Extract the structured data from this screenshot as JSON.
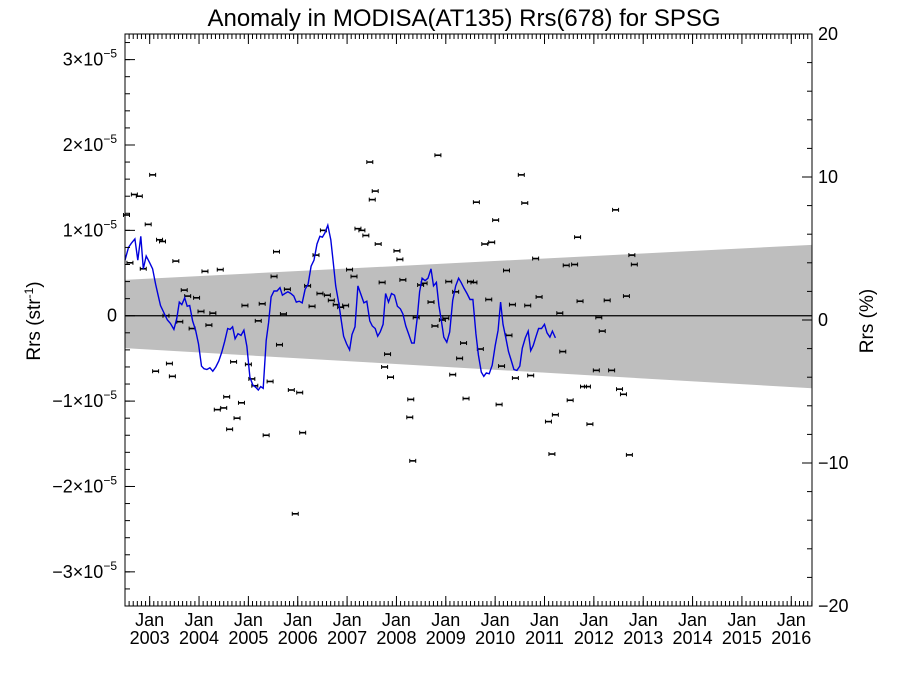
{
  "chart_data": {
    "type": "scatter",
    "title": "Anomaly in MODISA(AT135) Rrs(678) for SPSG",
    "ylabel_left": "Rrs (str",
    "ylabel_left_sup": "-1",
    "ylabel_left_close": ")",
    "ylabel_right": "Rrs (%)",
    "ylim_left": [
      -3.4e-05,
      3.3e-05
    ],
    "ylim_right": [
      -20,
      20
    ],
    "xlim": [
      2002.5,
      2016.42
    ],
    "left_ticks": [
      {
        "value": 3e-05,
        "mant": "3×10",
        "exp": "−5"
      },
      {
        "value": 2e-05,
        "mant": "2×10",
        "exp": "−5"
      },
      {
        "value": 1e-05,
        "mant": "1×10",
        "exp": "−5"
      },
      {
        "value": 0,
        "mant": "0",
        "exp": ""
      },
      {
        "value": -1e-05,
        "mant": "−1×10",
        "exp": "−5"
      },
      {
        "value": -2e-05,
        "mant": "−2×10",
        "exp": "−5"
      },
      {
        "value": -3e-05,
        "mant": "−3×10",
        "exp": "−5"
      }
    ],
    "right_ticks": [
      {
        "value": 20,
        "label": "20"
      },
      {
        "value": 10,
        "label": "10"
      },
      {
        "value": 0,
        "label": "0"
      },
      {
        "value": -10,
        "label": "−10"
      },
      {
        "value": -20,
        "label": "−20"
      }
    ],
    "x_ticks": [
      {
        "value": 2003,
        "month": "Jan",
        "year": "2003"
      },
      {
        "value": 2004,
        "month": "Jan",
        "year": "2004"
      },
      {
        "value": 2005,
        "month": "Jan",
        "year": "2005"
      },
      {
        "value": 2006,
        "month": "Jan",
        "year": "2006"
      },
      {
        "value": 2007,
        "month": "Jan",
        "year": "2007"
      },
      {
        "value": 2008,
        "month": "Jan",
        "year": "2008"
      },
      {
        "value": 2009,
        "month": "Jan",
        "year": "2009"
      },
      {
        "value": 2010,
        "month": "Jan",
        "year": "2010"
      },
      {
        "value": 2011,
        "month": "Jan",
        "year": "2011"
      },
      {
        "value": 2012,
        "month": "Jan",
        "year": "2012"
      },
      {
        "value": 2013,
        "month": "Jan",
        "year": "2013"
      },
      {
        "value": 2014,
        "month": "Jan",
        "year": "2014"
      },
      {
        "value": 2015,
        "month": "Jan",
        "year": "2015"
      },
      {
        "value": 2016,
        "month": "Jan",
        "year": "2016"
      }
    ],
    "band": {
      "upper": [
        [
          2002.5,
          4.2e-06
        ],
        [
          2016.42,
          8.3e-06
        ]
      ],
      "lower": [
        [
          2002.5,
          -3.8e-06
        ],
        [
          2016.42,
          -8.5e-06
        ]
      ],
      "color": "#bebebe"
    },
    "colors": {
      "points": "#000000",
      "smooth": "#0000dd",
      "zero_line": "#000000"
    },
    "points": [
      [
        2002.53,
        1.18e-05
      ],
      [
        2002.6,
        6.2e-06
      ],
      [
        2002.69,
        1.42e-05
      ],
      [
        2002.79,
        1.4e-05
      ],
      [
        2002.87,
        5.5e-06
      ],
      [
        2002.97,
        1.07e-05
      ],
      [
        2003.06,
        1.65e-05
      ],
      [
        2003.12,
        -6.5e-06
      ],
      [
        2003.2,
        8.9e-06
      ],
      [
        2003.26,
        8.7e-06
      ],
      [
        2003.33,
        0
      ],
      [
        2003.4,
        -5.6e-06
      ],
      [
        2003.46,
        -7.1e-06
      ],
      [
        2003.53,
        6.4e-06
      ],
      [
        2003.61,
        -7e-07
      ],
      [
        2003.7,
        3e-06
      ],
      [
        2003.77,
        2.3e-06
      ],
      [
        2003.86,
        -1.5e-06
      ],
      [
        2003.95,
        2.1e-06
      ],
      [
        2004.04,
        5e-07
      ],
      [
        2004.12,
        5.2e-06
      ],
      [
        2004.2,
        -1.1e-06
      ],
      [
        2004.28,
        3e-07
      ],
      [
        2004.37,
        -1.1e-05
      ],
      [
        2004.43,
        5.4e-06
      ],
      [
        2004.5,
        -1.08e-05
      ],
      [
        2004.56,
        -9.5e-06
      ],
      [
        2004.62,
        -1.33e-05
      ],
      [
        2004.7,
        -5.4e-06
      ],
      [
        2004.77,
        -1.2e-05
      ],
      [
        2004.86,
        -1.02e-05
      ],
      [
        2004.93,
        1.2e-06
      ],
      [
        2005.0,
        -5.7e-06
      ],
      [
        2005.07,
        -7.4e-06
      ],
      [
        2005.13,
        -8.2e-06
      ],
      [
        2005.2,
        -6e-07
      ],
      [
        2005.28,
        1.4e-06
      ],
      [
        2005.36,
        -1.4e-05
      ],
      [
        2005.44,
        -7.7e-06
      ],
      [
        2005.52,
        4.6e-06
      ],
      [
        2005.57,
        7.5e-06
      ],
      [
        2005.63,
        -3.4e-06
      ],
      [
        2005.71,
        2e-07
      ],
      [
        2005.79,
        3.1e-06
      ],
      [
        2005.87,
        -8.7e-06
      ],
      [
        2005.95,
        -2.32e-05
      ],
      [
        2006.04,
        -9e-06
      ],
      [
        2006.1,
        -1.37e-05
      ],
      [
        2006.2,
        3.5e-06
      ],
      [
        2006.29,
        1.1e-06
      ],
      [
        2006.37,
        7.1e-06
      ],
      [
        2006.45,
        2.6e-06
      ],
      [
        2006.52,
        1e-05
      ],
      [
        2006.6,
        2.4e-06
      ],
      [
        2006.68,
        1.8e-06
      ],
      [
        2006.78,
        1.3e-06
      ],
      [
        2006.87,
        1e-06
      ],
      [
        2006.97,
        1.2e-06
      ],
      [
        2007.05,
        5.4e-06
      ],
      [
        2007.14,
        4.6e-06
      ],
      [
        2007.22,
        1.02e-05
      ],
      [
        2007.3,
        1e-05
      ],
      [
        2007.38,
        9.4e-06
      ],
      [
        2007.46,
        1.8e-05
      ],
      [
        2007.51,
        1.36e-05
      ],
      [
        2007.57,
        1.46e-05
      ],
      [
        2007.63,
        8.4e-06
      ],
      [
        2007.71,
        3.9e-06
      ],
      [
        2007.76,
        -6e-06
      ],
      [
        2007.82,
        -4.5e-06
      ],
      [
        2007.88,
        -7.2e-06
      ],
      [
        2008.01,
        7.6e-06
      ],
      [
        2008.07,
        6.6e-06
      ],
      [
        2008.13,
        4.2e-06
      ],
      [
        2008.29,
        -9.8e-06
      ],
      [
        2008.27,
        -1.19e-05
      ],
      [
        2008.33,
        -1.7e-05
      ],
      [
        2008.4,
        -2e-07
      ],
      [
        2008.49,
        3.6e-06
      ],
      [
        2008.56,
        3.8e-06
      ],
      [
        2008.7,
        1.6e-06
      ],
      [
        2008.78,
        -1.2e-06
      ],
      [
        2008.84,
        1.88e-05
      ],
      [
        2008.93,
        -5e-07
      ],
      [
        2009.0,
        -3e-07
      ],
      [
        2009.06,
        4e-06
      ],
      [
        2009.14,
        -6.9e-06
      ],
      [
        2009.2,
        2.8e-06
      ],
      [
        2009.28,
        -5e-06
      ],
      [
        2009.36,
        -3.2e-06
      ],
      [
        2009.41,
        -9.7e-06
      ],
      [
        2009.5,
        4e-06
      ],
      [
        2009.57,
        3.9e-06
      ],
      [
        2009.62,
        1.33e-05
      ],
      [
        2009.7,
        -3.9e-06
      ],
      [
        2009.79,
        8.4e-06
      ],
      [
        2009.87,
        1.9e-06
      ],
      [
        2009.93,
        8.6e-06
      ],
      [
        2010.01,
        1.12e-05
      ],
      [
        2010.08,
        -1.04e-05
      ],
      [
        2010.13,
        -5.9e-06
      ],
      [
        2010.23,
        5.3e-06
      ],
      [
        2010.28,
        -2.3e-06
      ],
      [
        2010.35,
        1.3e-06
      ],
      [
        2010.41,
        -7.3e-06
      ],
      [
        2010.53,
        1.65e-05
      ],
      [
        2010.6,
        1.32e-05
      ],
      [
        2010.66,
        1.2e-06
      ],
      [
        2010.72,
        -7e-06
      ],
      [
        2010.82,
        6.7e-06
      ],
      [
        2010.89,
        2.2e-06
      ],
      [
        2011.08,
        -1.24e-05
      ],
      [
        2011.15,
        -1.62e-05
      ],
      [
        2011.22,
        -1.16e-05
      ],
      [
        2011.31,
        3e-07
      ],
      [
        2011.37,
        -4.2e-06
      ],
      [
        2011.44,
        5.9e-06
      ],
      [
        2011.52,
        -9.9e-06
      ],
      [
        2011.61,
        6e-06
      ],
      [
        2011.67,
        9.2e-06
      ],
      [
        2011.72,
        1.7e-06
      ],
      [
        2011.79,
        -8.3e-06
      ],
      [
        2011.87,
        -8.3e-06
      ],
      [
        2011.92,
        -1.27e-05
      ],
      [
        2012.05,
        -6.4e-06
      ],
      [
        2012.1,
        -2e-07
      ],
      [
        2012.17,
        -1.8e-06
      ],
      [
        2012.27,
        1.8e-06
      ],
      [
        2012.36,
        -6.4e-06
      ],
      [
        2012.44,
        1.24e-05
      ],
      [
        2012.52,
        -8.6e-06
      ],
      [
        2012.6,
        -9.2e-06
      ],
      [
        2012.66,
        2.3e-06
      ],
      [
        2012.72,
        -1.63e-05
      ],
      [
        2012.77,
        7.1e-06
      ],
      [
        2012.82,
        6e-06
      ]
    ],
    "smooth": [
      [
        2002.5,
        6.5e-06
      ],
      [
        2002.57,
        8e-06
      ],
      [
        2002.63,
        8.5e-06
      ],
      [
        2002.7,
        9e-06
      ],
      [
        2002.76,
        6.5e-06
      ],
      [
        2002.82,
        9.3e-06
      ],
      [
        2002.87,
        5.5e-06
      ],
      [
        2002.93,
        7e-06
      ],
      [
        2003.0,
        6.2e-06
      ],
      [
        2003.06,
        5.5e-06
      ],
      [
        2003.12,
        3.7e-06
      ],
      [
        2003.17,
        2.4e-06
      ],
      [
        2003.22,
        1.2e-06
      ],
      [
        2003.3,
        2e-07
      ],
      [
        2003.36,
        -5e-07
      ],
      [
        2003.42,
        -9e-07
      ],
      [
        2003.49,
        -1.6e-06
      ],
      [
        2003.55,
        -3e-07
      ],
      [
        2003.6,
        1.6e-06
      ],
      [
        2003.65,
        1.3e-06
      ],
      [
        2003.71,
        2.1e-06
      ],
      [
        2003.76,
        1.1e-06
      ],
      [
        2003.81,
        1.2e-06
      ],
      [
        2003.87,
        -6e-07
      ],
      [
        2003.93,
        -1.7e-06
      ],
      [
        2003.99,
        -3.3e-06
      ],
      [
        2004.05,
        -5.9e-06
      ],
      [
        2004.1,
        -6.2e-06
      ],
      [
        2004.16,
        -6.3e-06
      ],
      [
        2004.22,
        -6.1e-06
      ],
      [
        2004.28,
        -6.5e-06
      ],
      [
        2004.34,
        -6e-06
      ],
      [
        2004.4,
        -5.3e-06
      ],
      [
        2004.46,
        -4.3e-06
      ],
      [
        2004.52,
        -3e-06
      ],
      [
        2004.58,
        -1.5e-06
      ],
      [
        2004.63,
        -1.6e-06
      ],
      [
        2004.68,
        -1.3e-06
      ],
      [
        2004.73,
        -2.7e-06
      ],
      [
        2004.79,
        -2.1e-06
      ],
      [
        2004.85,
        -2.3e-06
      ],
      [
        2004.91,
        -1.7e-06
      ],
      [
        2004.97,
        -3.6e-06
      ],
      [
        2005.03,
        -7.2e-06
      ],
      [
        2005.09,
        -8.1e-06
      ],
      [
        2005.15,
        -8.4e-06
      ],
      [
        2005.2,
        -8.7e-06
      ],
      [
        2005.25,
        -8.3e-06
      ],
      [
        2005.3,
        -8.5e-06
      ],
      [
        2005.36,
        -2.9e-06
      ],
      [
        2005.41,
        -8e-07
      ],
      [
        2005.46,
        2.2e-06
      ],
      [
        2005.52,
        2.9e-06
      ],
      [
        2005.58,
        2.9e-06
      ],
      [
        2005.64,
        3.3e-06
      ],
      [
        2005.69,
        2.4e-06
      ],
      [
        2005.74,
        2.6e-06
      ],
      [
        2005.8,
        2.8e-06
      ],
      [
        2005.86,
        2.6e-06
      ],
      [
        2005.92,
        2.3e-06
      ],
      [
        2005.97,
        1.6e-06
      ],
      [
        2006.03,
        1.7e-06
      ],
      [
        2006.09,
        1.5e-06
      ],
      [
        2006.15,
        3.1e-06
      ],
      [
        2006.21,
        3.7e-06
      ],
      [
        2006.27,
        5.8e-06
      ],
      [
        2006.33,
        6.5e-06
      ],
      [
        2006.39,
        8.4e-06
      ],
      [
        2006.45,
        9.3e-06
      ],
      [
        2006.5,
        9.2e-06
      ],
      [
        2006.55,
        9.7e-06
      ],
      [
        2006.61,
        1.06e-05
      ],
      [
        2006.67,
        8.9e-06
      ],
      [
        2006.72,
        6.2e-06
      ],
      [
        2006.77,
        3.5e-06
      ],
      [
        2006.83,
        1.5e-06
      ],
      [
        2006.88,
        -5e-07
      ],
      [
        2006.93,
        -2.4e-06
      ],
      [
        2006.99,
        -3.3e-06
      ],
      [
        2007.05,
        -4e-06
      ],
      [
        2007.1,
        -2.2e-06
      ],
      [
        2007.16,
        -1.3e-06
      ],
      [
        2007.22,
        3.5e-06
      ],
      [
        2007.28,
        2.5e-06
      ],
      [
        2007.34,
        1.5e-06
      ],
      [
        2007.4,
        1.7e-06
      ],
      [
        2007.46,
        -6e-07
      ],
      [
        2007.51,
        -1.2e-06
      ],
      [
        2007.57,
        -1.5e-06
      ],
      [
        2007.62,
        -2.4e-06
      ],
      [
        2007.67,
        -1.9e-06
      ],
      [
        2007.73,
        -1e-06
      ],
      [
        2007.78,
        2.6e-06
      ],
      [
        2007.84,
        1.6e-06
      ],
      [
        2007.9,
        2.6e-06
      ],
      [
        2007.96,
        2.4e-06
      ],
      [
        2008.02,
        1.1e-06
      ],
      [
        2008.08,
        8e-07
      ],
      [
        2008.13,
        2e-07
      ],
      [
        2008.19,
        -1.2e-06
      ],
      [
        2008.25,
        -2.2e-06
      ],
      [
        2008.31,
        -3.2e-06
      ],
      [
        2008.36,
        -3.2e-06
      ],
      [
        2008.42,
        -3e-07
      ],
      [
        2008.47,
        2.8e-06
      ],
      [
        2008.52,
        4.4e-06
      ],
      [
        2008.58,
        4.1e-06
      ],
      [
        2008.64,
        4.4e-06
      ],
      [
        2008.7,
        5.5e-06
      ],
      [
        2008.75,
        3.5e-06
      ],
      [
        2008.81,
        3.9e-06
      ],
      [
        2008.86,
        1.2e-06
      ],
      [
        2008.91,
        -6e-07
      ],
      [
        2008.96,
        -2.5e-06
      ],
      [
        2009.02,
        -3.1e-06
      ],
      [
        2009.08,
        -1.9e-06
      ],
      [
        2009.14,
        1.8e-06
      ],
      [
        2009.2,
        3.5e-06
      ],
      [
        2009.26,
        4.4e-06
      ],
      [
        2009.31,
        3.9e-06
      ],
      [
        2009.37,
        3.2e-06
      ],
      [
        2009.43,
        2.6e-06
      ],
      [
        2009.49,
        1.9e-06
      ],
      [
        2009.55,
        1.9e-06
      ],
      [
        2009.61,
        -2.1e-06
      ],
      [
        2009.66,
        -4.6e-06
      ],
      [
        2009.72,
        -6.6e-06
      ],
      [
        2009.77,
        -7.1e-06
      ],
      [
        2009.82,
        -6.7e-06
      ],
      [
        2009.88,
        -6.8e-06
      ],
      [
        2009.94,
        -5.8e-06
      ],
      [
        2010.0,
        -3.5e-06
      ],
      [
        2010.06,
        -1.7e-06
      ],
      [
        2010.11,
        1.6e-06
      ],
      [
        2010.16,
        -1e-06
      ],
      [
        2010.22,
        -2.7e-06
      ],
      [
        2010.27,
        -4.2e-06
      ],
      [
        2010.33,
        -5.3e-06
      ],
      [
        2010.38,
        -6.3e-06
      ],
      [
        2010.44,
        -6.4e-06
      ],
      [
        2010.5,
        -5.9e-06
      ],
      [
        2010.55,
        -3.8e-06
      ],
      [
        2010.61,
        -2.6e-06
      ],
      [
        2010.67,
        -1.8e-06
      ],
      [
        2010.72,
        -4.1e-06
      ],
      [
        2010.77,
        -3.5e-06
      ],
      [
        2010.83,
        -2.4e-06
      ],
      [
        2010.88,
        -1.5e-06
      ],
      [
        2010.94,
        -1.5e-06
      ],
      [
        2011.0,
        -1e-06
      ],
      [
        2011.05,
        -2e-06
      ],
      [
        2011.11,
        -2.5e-06
      ],
      [
        2011.16,
        -1.8e-06
      ],
      [
        2011.22,
        -2.6e-06
      ]
    ]
  }
}
